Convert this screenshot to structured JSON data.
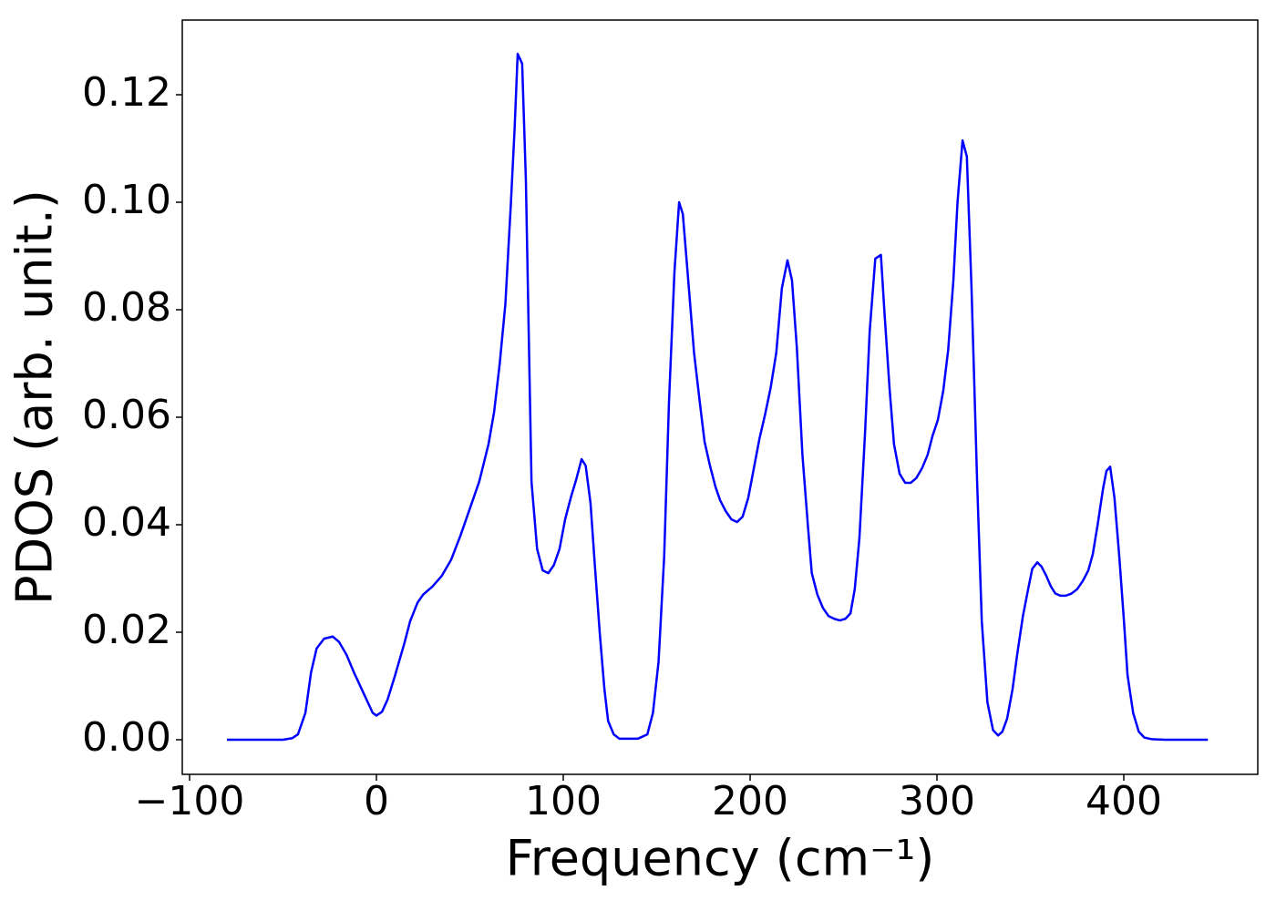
{
  "chart_data": {
    "type": "line",
    "x_label": "Frequency (cm⁻¹)",
    "y_label": "PDOS (arb. unit.)",
    "color": "#0000ff",
    "x": [
      -80,
      -50,
      -45,
      -42,
      -38,
      -35,
      -32,
      -28,
      -23.4,
      -20,
      -16,
      -12,
      -8,
      -4,
      -2,
      0,
      3,
      6,
      10,
      15,
      18,
      22,
      25,
      30,
      35,
      40,
      45,
      50,
      55,
      60,
      63,
      66,
      69,
      72,
      74,
      75.6,
      78,
      80,
      83,
      86,
      89,
      92,
      95,
      98,
      101,
      104,
      107,
      109.8,
      112,
      114.6,
      117,
      119.5,
      122,
      124,
      127,
      130,
      140,
      145,
      148,
      151,
      154,
      156.6,
      159.5,
      162,
      164,
      167,
      170,
      173,
      175.6,
      178.5,
      181.5,
      184,
      187,
      190,
      193,
      196,
      199,
      202,
      205,
      208,
      211,
      214,
      217,
      220,
      222.4,
      225,
      228,
      231,
      233,
      236,
      239,
      242,
      245,
      248,
      251,
      253.7,
      256,
      258.5,
      261.5,
      264,
      267,
      270,
      272,
      274.6,
      277,
      280,
      283,
      286,
      289,
      292,
      295,
      297.6,
      300.5,
      303.4,
      306,
      308.8,
      311,
      313.7,
      316,
      318.5,
      321.5,
      324,
      327,
      330,
      332.7,
      335,
      337.6,
      340.5,
      343,
      346,
      348.8,
      351,
      353.7,
      356,
      358.5,
      361,
      363.4,
      366,
      369,
      372,
      375,
      378,
      381,
      383.4,
      386,
      388.8,
      390.7,
      392.7,
      395,
      397.6,
      400,
      402,
      405,
      408,
      411,
      415,
      422,
      445
    ],
    "values": [
      0,
      0,
      0.0003,
      0.001,
      0.005,
      0.0125,
      0.017,
      0.0188,
      0.0192,
      0.0182,
      0.0158,
      0.0125,
      0.0095,
      0.0065,
      0.005,
      0.0045,
      0.0052,
      0.0075,
      0.012,
      0.018,
      0.022,
      0.0255,
      0.027,
      0.0285,
      0.0305,
      0.0335,
      0.038,
      0.043,
      0.048,
      0.055,
      0.061,
      0.07,
      0.081,
      0.1,
      0.114,
      0.1276,
      0.1258,
      0.104,
      0.048,
      0.0355,
      0.0315,
      0.031,
      0.0325,
      0.0355,
      0.041,
      0.045,
      0.0485,
      0.0522,
      0.051,
      0.044,
      0.032,
      0.02,
      0.0095,
      0.0035,
      0.001,
      0.0002,
      0.0002,
      0.001,
      0.005,
      0.0145,
      0.034,
      0.063,
      0.087,
      0.1,
      0.0978,
      0.085,
      0.072,
      0.063,
      0.0555,
      0.051,
      0.047,
      0.0445,
      0.0425,
      0.041,
      0.0405,
      0.0415,
      0.045,
      0.0505,
      0.056,
      0.0605,
      0.0655,
      0.072,
      0.084,
      0.0892,
      0.0855,
      0.073,
      0.053,
      0.0395,
      0.031,
      0.027,
      0.0245,
      0.023,
      0.0225,
      0.0222,
      0.0225,
      0.0235,
      0.028,
      0.0375,
      0.057,
      0.076,
      0.0895,
      0.0902,
      0.079,
      0.0655,
      0.055,
      0.0495,
      0.0478,
      0.0478,
      0.0487,
      0.0505,
      0.053,
      0.0565,
      0.0595,
      0.065,
      0.0725,
      0.0855,
      0.1,
      0.1115,
      0.1085,
      0.084,
      0.048,
      0.022,
      0.007,
      0.0018,
      0.0008,
      0.0015,
      0.004,
      0.0095,
      0.016,
      0.023,
      0.028,
      0.0318,
      0.033,
      0.0322,
      0.0305,
      0.0285,
      0.0272,
      0.0268,
      0.0268,
      0.0272,
      0.028,
      0.0295,
      0.0315,
      0.0345,
      0.04,
      0.0465,
      0.05,
      0.0508,
      0.045,
      0.034,
      0.0225,
      0.012,
      0.005,
      0.0015,
      0.0004,
      0.0001,
      0,
      0
    ],
    "xlim": [
      -103.9,
      471.7
    ],
    "ylim": [
      -0.00644,
      0.1339
    ],
    "xticks": [
      {
        "value": -100,
        "label": "−100"
      },
      0,
      100,
      200,
      300,
      400
    ],
    "yticks": [
      {
        "value": 0,
        "label": "0.00"
      },
      0.02,
      0.04,
      0.06,
      0.08,
      {
        "value": 0.1,
        "label": "0.10"
      },
      0.12
    ]
  }
}
